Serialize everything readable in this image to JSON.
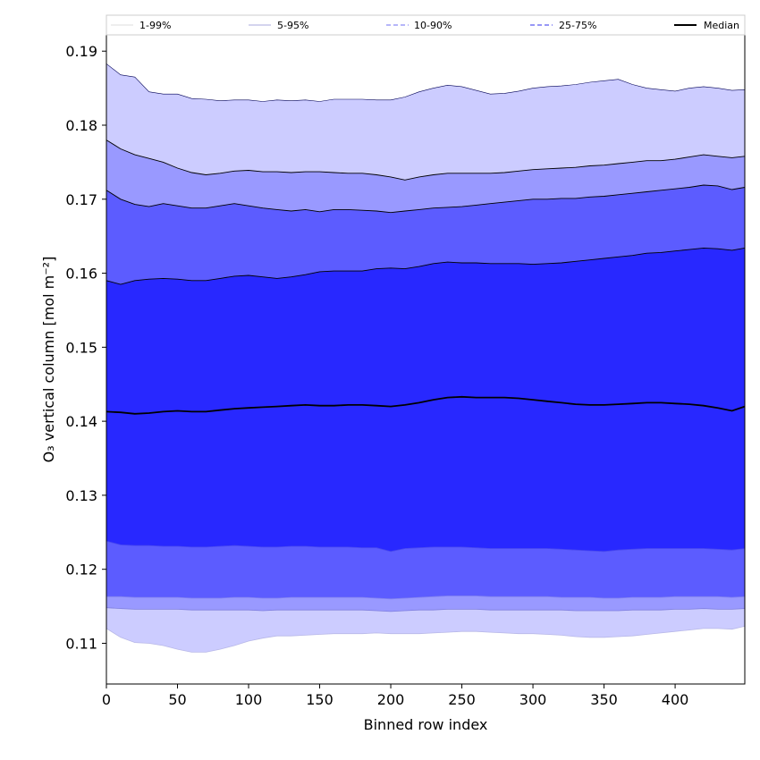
{
  "chart_data": {
    "type": "area",
    "title": "",
    "xlabel": "Binned row index",
    "ylabel": "O₃ vertical column [mol m⁻²]",
    "xlim": [
      0,
      449
    ],
    "ylim": [
      0.1045,
      0.1922
    ],
    "xticks": [
      0,
      50,
      100,
      150,
      200,
      250,
      300,
      350,
      400
    ],
    "yticks": [
      0.11,
      0.12,
      0.13,
      0.14,
      0.15,
      0.16,
      0.17,
      0.18,
      0.19
    ],
    "ytick_labels": [
      "0.11",
      "0.12",
      "0.13",
      "0.14",
      "0.15",
      "0.16",
      "0.17",
      "0.18",
      "0.19"
    ],
    "grid": false,
    "legend_position": "top (horizontal strip)",
    "x": [
      0,
      10,
      20,
      30,
      40,
      50,
      60,
      70,
      80,
      90,
      100,
      110,
      120,
      130,
      140,
      150,
      160,
      170,
      180,
      190,
      200,
      210,
      220,
      230,
      240,
      250,
      260,
      270,
      280,
      290,
      300,
      310,
      320,
      330,
      340,
      350,
      360,
      370,
      380,
      390,
      400,
      410,
      420,
      430,
      440,
      449
    ],
    "bands": [
      {
        "name": "1-99%",
        "color": "#ccccff",
        "line_color": "#b8b8e8",
        "line_style": "solid",
        "upper": [
          0.1883,
          0.1868,
          0.1865,
          0.1845,
          0.1842,
          0.1842,
          0.1836,
          0.1835,
          0.1833,
          0.1834,
          0.1834,
          0.1832,
          0.1834,
          0.1833,
          0.1834,
          0.1832,
          0.1835,
          0.1835,
          0.1835,
          0.1834,
          0.1834,
          0.1838,
          0.1845,
          0.185,
          0.1854,
          0.1852,
          0.1847,
          0.1842,
          0.1843,
          0.1846,
          0.185,
          0.1852,
          0.1853,
          0.1855,
          0.1858,
          0.186,
          0.1862,
          0.1855,
          0.185,
          0.1848,
          0.1846,
          0.185,
          0.1852,
          0.185,
          0.1847,
          0.1848
        ],
        "lower": [
          0.112,
          0.1108,
          0.1101,
          0.11,
          0.1097,
          0.1092,
          0.1088,
          0.1088,
          0.1092,
          0.1097,
          0.1103,
          0.1107,
          0.111,
          0.111,
          0.1111,
          0.1112,
          0.1113,
          0.1113,
          0.1113,
          0.1114,
          0.1113,
          0.1113,
          0.1113,
          0.1114,
          0.1115,
          0.1116,
          0.1116,
          0.1115,
          0.1114,
          0.1113,
          0.1113,
          0.1112,
          0.1111,
          0.1109,
          0.1108,
          0.1108,
          0.1109,
          0.111,
          0.1112,
          0.1114,
          0.1116,
          0.1118,
          0.112,
          0.112,
          0.1119,
          0.1123
        ]
      },
      {
        "name": "5-95%",
        "color": "#9999ff",
        "line_color": "#7f7fdd",
        "line_style": "solid",
        "upper": [
          0.178,
          0.1768,
          0.176,
          0.1755,
          0.175,
          0.1742,
          0.1736,
          0.1733,
          0.1735,
          0.1738,
          0.1739,
          0.1737,
          0.1737,
          0.1736,
          0.1737,
          0.1737,
          0.1736,
          0.1735,
          0.1735,
          0.1733,
          0.173,
          0.1726,
          0.173,
          0.1733,
          0.1735,
          0.1735,
          0.1735,
          0.1735,
          0.1736,
          0.1738,
          0.174,
          0.1741,
          0.1742,
          0.1743,
          0.1745,
          0.1746,
          0.1748,
          0.175,
          0.1752,
          0.1752,
          0.1754,
          0.1757,
          0.176,
          0.1758,
          0.1756,
          0.1758
        ],
        "lower": [
          0.1148,
          0.1147,
          0.1146,
          0.1146,
          0.1146,
          0.1146,
          0.1145,
          0.1145,
          0.1145,
          0.1145,
          0.1145,
          0.1144,
          0.1145,
          0.1145,
          0.1145,
          0.1145,
          0.1145,
          0.1145,
          0.1145,
          0.1144,
          0.1143,
          0.1144,
          0.1145,
          0.1145,
          0.1146,
          0.1146,
          0.1146,
          0.1145,
          0.1145,
          0.1145,
          0.1145,
          0.1145,
          0.1145,
          0.1144,
          0.1144,
          0.1144,
          0.1144,
          0.1145,
          0.1145,
          0.1145,
          0.1146,
          0.1146,
          0.1147,
          0.1146,
          0.1146,
          0.1147
        ]
      },
      {
        "name": "10-90%",
        "color": "#5c5cff",
        "line_color": "#8080ee",
        "line_style": "dashed",
        "upper": [
          0.1712,
          0.17,
          0.1693,
          0.169,
          0.1694,
          0.1691,
          0.1688,
          0.1688,
          0.1691,
          0.1694,
          0.1691,
          0.1688,
          0.1686,
          0.1684,
          0.1686,
          0.1683,
          0.1686,
          0.1686,
          0.1685,
          0.1684,
          0.1682,
          0.1684,
          0.1686,
          0.1688,
          0.1689,
          0.169,
          0.1692,
          0.1694,
          0.1696,
          0.1698,
          0.17,
          0.17,
          0.1701,
          0.1701,
          0.1703,
          0.1704,
          0.1706,
          0.1708,
          0.171,
          0.1712,
          0.1714,
          0.1716,
          0.1719,
          0.1718,
          0.1713,
          0.1716
        ],
        "lower": [
          0.1163,
          0.1163,
          0.1162,
          0.1162,
          0.1162,
          0.1162,
          0.1161,
          0.1161,
          0.1161,
          0.1162,
          0.1162,
          0.1161,
          0.1161,
          0.1162,
          0.1162,
          0.1162,
          0.1162,
          0.1162,
          0.1162,
          0.1161,
          0.116,
          0.1161,
          0.1162,
          0.1163,
          0.1164,
          0.1164,
          0.1164,
          0.1163,
          0.1163,
          0.1163,
          0.1163,
          0.1163,
          0.1162,
          0.1162,
          0.1162,
          0.1161,
          0.1161,
          0.1162,
          0.1162,
          0.1162,
          0.1163,
          0.1163,
          0.1163,
          0.1163,
          0.1162,
          0.1163
        ]
      },
      {
        "name": "25-75%",
        "color": "#2828ff",
        "line_color": "#4a4aee",
        "line_style": "dashed",
        "upper": [
          0.159,
          0.1585,
          0.159,
          0.1592,
          0.1593,
          0.1592,
          0.159,
          0.159,
          0.1593,
          0.1596,
          0.1597,
          0.1595,
          0.1593,
          0.1595,
          0.1598,
          0.1602,
          0.1603,
          0.1603,
          0.1603,
          0.1606,
          0.1607,
          0.1606,
          0.1609,
          0.1613,
          0.1615,
          0.1614,
          0.1614,
          0.1613,
          0.1613,
          0.1613,
          0.1612,
          0.1613,
          0.1614,
          0.1616,
          0.1618,
          0.162,
          0.1622,
          0.1624,
          0.1627,
          0.1628,
          0.163,
          0.1632,
          0.1634,
          0.1633,
          0.1631,
          0.1634
        ],
        "lower": [
          0.1238,
          0.1233,
          0.1232,
          0.1232,
          0.1231,
          0.1231,
          0.123,
          0.123,
          0.1231,
          0.1232,
          0.1231,
          0.123,
          0.123,
          0.1231,
          0.1231,
          0.123,
          0.123,
          0.123,
          0.1229,
          0.1229,
          0.1224,
          0.1228,
          0.1229,
          0.123,
          0.123,
          0.123,
          0.1229,
          0.1228,
          0.1228,
          0.1228,
          0.1228,
          0.1228,
          0.1227,
          0.1226,
          0.1225,
          0.1224,
          0.1226,
          0.1227,
          0.1228,
          0.1228,
          0.1228,
          0.1228,
          0.1228,
          0.1227,
          0.1226,
          0.1228
        ]
      }
    ],
    "median": {
      "name": "Median",
      "color": "#000000",
      "values": [
        0.1413,
        0.1412,
        0.141,
        0.1411,
        0.1413,
        0.1414,
        0.1413,
        0.1413,
        0.1415,
        0.1417,
        0.1418,
        0.1419,
        0.142,
        0.1421,
        0.1422,
        0.1421,
        0.1421,
        0.1422,
        0.1422,
        0.1421,
        0.142,
        0.1422,
        0.1425,
        0.1429,
        0.1432,
        0.1433,
        0.1432,
        0.1432,
        0.1432,
        0.1431,
        0.1429,
        0.1427,
        0.1425,
        0.1423,
        0.1422,
        0.1422,
        0.1423,
        0.1424,
        0.1425,
        0.1425,
        0.1424,
        0.1423,
        0.1421,
        0.1418,
        0.1414,
        0.142
      ]
    },
    "legend": [
      {
        "label": "1-99%"
      },
      {
        "label": "5-95%"
      },
      {
        "label": "10-90%"
      },
      {
        "label": "25-75%"
      },
      {
        "label": "Median"
      }
    ]
  }
}
